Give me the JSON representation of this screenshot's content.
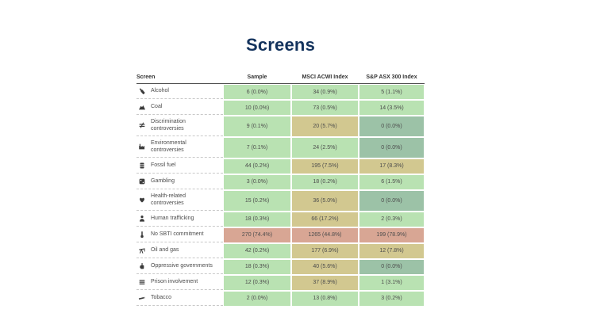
{
  "title": "Screens",
  "colors": {
    "green": "#b9e2b2",
    "tan": "#d2c890",
    "salmon": "#d8a694",
    "teal": "#9cc2a7",
    "title_navy": "#14335d"
  },
  "table": {
    "columns": [
      "Screen",
      "Sample",
      "MSCI ACWI Index",
      "S&P ASX 300 Index"
    ],
    "rows": [
      {
        "icon": "bottle-icon",
        "label": "Alcohol",
        "cells": [
          {
            "text": "6 (0.0%)",
            "color": "green"
          },
          {
            "text": "34 (0.9%)",
            "color": "green"
          },
          {
            "text": "5 (1.1%)",
            "color": "green"
          }
        ]
      },
      {
        "icon": "coal-pile-icon",
        "label": "Coal",
        "cells": [
          {
            "text": "10 (0.0%)",
            "color": "green"
          },
          {
            "text": "73 (0.5%)",
            "color": "green"
          },
          {
            "text": "14 (3.5%)",
            "color": "green"
          }
        ]
      },
      {
        "icon": "unequal-icon",
        "label": "Discrimination controversies",
        "cells": [
          {
            "text": "9 (0.1%)",
            "color": "green"
          },
          {
            "text": "20 (5.7%)",
            "color": "tan"
          },
          {
            "text": "0 (0.0%)",
            "color": "teal"
          }
        ]
      },
      {
        "icon": "factory-icon",
        "label": "Environmental controversies",
        "cells": [
          {
            "text": "7 (0.1%)",
            "color": "green"
          },
          {
            "text": "24 (2.5%)",
            "color": "green"
          },
          {
            "text": "0 (0.0%)",
            "color": "teal"
          }
        ]
      },
      {
        "icon": "fuel-barrel-icon",
        "label": "Fossil fuel",
        "cells": [
          {
            "text": "44 (0.2%)",
            "color": "green"
          },
          {
            "text": "195 (7.5%)",
            "color": "tan"
          },
          {
            "text": "17 (8.3%)",
            "color": "tan"
          }
        ]
      },
      {
        "icon": "dice-icon",
        "label": "Gambling",
        "cells": [
          {
            "text": "3 (0.0%)",
            "color": "green"
          },
          {
            "text": "18 (0.2%)",
            "color": "green"
          },
          {
            "text": "6 (1.5%)",
            "color": "green"
          }
        ]
      },
      {
        "icon": "heart-icon",
        "label": "Health-related controversies",
        "cells": [
          {
            "text": "15 (0.2%)",
            "color": "green"
          },
          {
            "text": "36 (5.0%)",
            "color": "tan"
          },
          {
            "text": "0 (0.0%)",
            "color": "teal"
          }
        ]
      },
      {
        "icon": "person-icon",
        "label": "Human trafficking",
        "cells": [
          {
            "text": "18 (0.3%)",
            "color": "green"
          },
          {
            "text": "66 (17.2%)",
            "color": "tan"
          },
          {
            "text": "2 (0.3%)",
            "color": "green"
          }
        ]
      },
      {
        "icon": "thermometer-icon",
        "label": "No SBTI commitment",
        "cells": [
          {
            "text": "270 (74.4%)",
            "color": "salmon"
          },
          {
            "text": "1265 (44.8%)",
            "color": "salmon"
          },
          {
            "text": "199 (78.9%)",
            "color": "salmon"
          }
        ]
      },
      {
        "icon": "oil-pump-icon",
        "label": "Oil and gas",
        "cells": [
          {
            "text": "42 (0.2%)",
            "color": "green"
          },
          {
            "text": "177 (6.9%)",
            "color": "tan"
          },
          {
            "text": "12 (7.8%)",
            "color": "tan"
          }
        ]
      },
      {
        "icon": "fist-icon",
        "label": "Oppressive governments",
        "cells": [
          {
            "text": "18 (0.3%)",
            "color": "green"
          },
          {
            "text": "40 (5.6%)",
            "color": "tan"
          },
          {
            "text": "0 (0.0%)",
            "color": "teal"
          }
        ]
      },
      {
        "icon": "prison-bars-icon",
        "label": "Prison involvement",
        "cells": [
          {
            "text": "12 (0.3%)",
            "color": "green"
          },
          {
            "text": "37 (8.9%)",
            "color": "tan"
          },
          {
            "text": "1 (3.1%)",
            "color": "green"
          }
        ]
      },
      {
        "icon": "cigarette-icon",
        "label": "Tobacco",
        "cells": [
          {
            "text": "2 (0.0%)",
            "color": "green"
          },
          {
            "text": "13 (0.8%)",
            "color": "green"
          },
          {
            "text": "3 (0.2%)",
            "color": "green"
          }
        ]
      }
    ]
  }
}
